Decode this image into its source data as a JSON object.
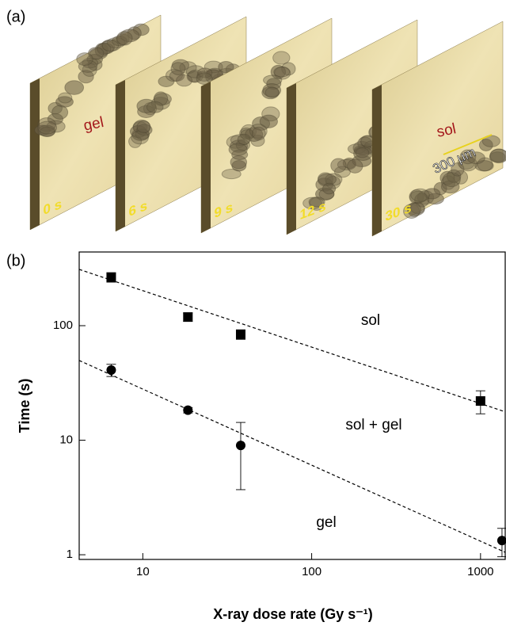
{
  "panel_a": {
    "label": "(a)",
    "frames": [
      "0 s",
      "6 s",
      "9 s",
      "12 s",
      "30 s"
    ],
    "gel_label": "gel",
    "sol_label": "sol",
    "scale_bar": "300 μm"
  },
  "chart_data": {
    "type": "scatter",
    "panel_label": "(b)",
    "xlabel": "X-ray dose rate (Gy s⁻¹)",
    "ylabel": "Time (s)",
    "xscale": "log",
    "yscale": "log",
    "xlim": [
      4.2,
      1400
    ],
    "ylim": [
      0.91,
      440
    ],
    "xticks": [
      10,
      100,
      1000
    ],
    "yticks": [
      1,
      10,
      100
    ],
    "series": [
      {
        "marker": "square",
        "color": "#000000",
        "x": [
          6.5,
          18.5,
          38,
          1000
        ],
        "values": [
          265,
          119,
          84,
          22
        ],
        "errors": [
          25,
          10,
          8,
          5
        ]
      },
      {
        "marker": "circle",
        "color": "#000000",
        "x": [
          6.5,
          18.5,
          38,
          1340
        ],
        "values": [
          41,
          18.3,
          9,
          1.33
        ],
        "errors": [
          5,
          1,
          5.3,
          0.37
        ]
      }
    ],
    "fit_lines": [
      {
        "x": [
          4.2,
          1400
        ],
        "values": [
          310,
          17.7
        ]
      },
      {
        "x": [
          4.2,
          1400
        ],
        "values": [
          49.7,
          1.05
        ]
      }
    ],
    "annotations": [
      "sol",
      "sol + gel",
      "gel"
    ]
  }
}
